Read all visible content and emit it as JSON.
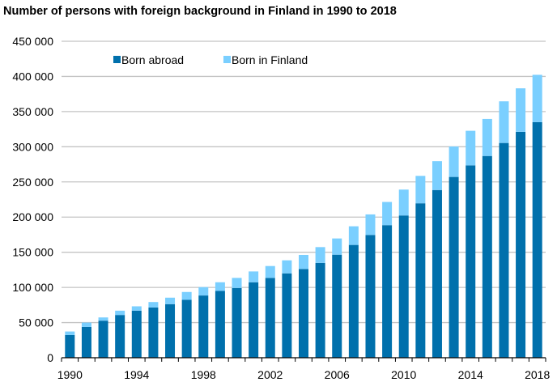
{
  "chart_data": {
    "type": "bar",
    "stacked": true,
    "title": "Number of persons with foreign background in Finland in 1990 to 2018",
    "xlabel": "",
    "ylabel": "",
    "ylim": [
      0,
      450000
    ],
    "yticks": [
      "0",
      "50 000",
      "100 000",
      "150 000",
      "200 000",
      "250 000",
      "300 000",
      "350 000",
      "400 000",
      "450 000"
    ],
    "grid": true,
    "legend_position": "top-left",
    "categories": [
      1990,
      1991,
      1992,
      1993,
      1994,
      1995,
      1996,
      1997,
      1998,
      1999,
      2000,
      2001,
      2002,
      2003,
      2004,
      2005,
      2006,
      2007,
      2008,
      2009,
      2010,
      2011,
      2012,
      2013,
      2014,
      2015,
      2016,
      2017,
      2018
    ],
    "xtick_labels": [
      "1990",
      "1994",
      "1998",
      "2002",
      "2006",
      "2010",
      "2014",
      "2018"
    ],
    "series": [
      {
        "name": "Born abroad",
        "color": "#0070AC",
        "values": [
          32300,
          43800,
          52700,
          60800,
          66900,
          71500,
          76200,
          82300,
          88500,
          95000,
          99200,
          107300,
          113500,
          120000,
          126200,
          134800,
          146500,
          160400,
          174600,
          188500,
          202300,
          219600,
          238500,
          257100,
          273500,
          286900,
          305400,
          321200,
          335000
        ]
      },
      {
        "name": "Born in Finland",
        "color": "#7ACFFF",
        "values": [
          5000,
          6200,
          4600,
          6100,
          6200,
          7700,
          9200,
          11200,
          11900,
          12300,
          14300,
          15400,
          16900,
          18500,
          20000,
          22500,
          23100,
          26500,
          29200,
          33000,
          36800,
          39000,
          41000,
          43300,
          49200,
          52700,
          59200,
          61900,
          67300
        ]
      }
    ]
  }
}
